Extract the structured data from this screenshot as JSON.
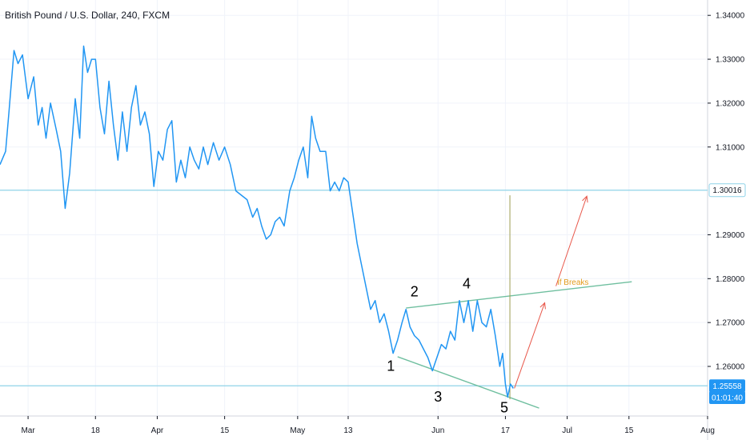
{
  "chart_data": {
    "type": "line",
    "title": "British Pound / U.S. Dollar, 240, FXCM",
    "ylim": [
      1.2487,
      1.3435
    ],
    "xlim": [
      0,
      126
    ],
    "x_ticks": [
      {
        "label": "Mar",
        "x": 5
      },
      {
        "label": "18",
        "x": 17
      },
      {
        "label": "Apr",
        "x": 28
      },
      {
        "label": "15",
        "x": 40
      },
      {
        "label": "May",
        "x": 53
      },
      {
        "label": "13",
        "x": 62
      },
      {
        "label": "Jun",
        "x": 78
      },
      {
        "label": "17",
        "x": 90
      },
      {
        "label": "Jul",
        "x": 101
      },
      {
        "label": "15",
        "x": 112
      },
      {
        "label": "Aug",
        "x": 126
      }
    ],
    "y_ticks": [
      {
        "label": "1.34000",
        "value": 1.34
      },
      {
        "label": "1.33000",
        "value": 1.33
      },
      {
        "label": "1.32000",
        "value": 1.32
      },
      {
        "label": "1.31000",
        "value": 1.31
      },
      {
        "label": "1.29000",
        "value": 1.29
      },
      {
        "label": "1.28000",
        "value": 1.28
      },
      {
        "label": "1.27000",
        "value": 1.27
      },
      {
        "label": "1.26000",
        "value": 1.26
      }
    ],
    "series": [
      {
        "color": "#2196f3",
        "points": [
          [
            0,
            1.306
          ],
          [
            1,
            1.309
          ],
          [
            1.6,
            1.318
          ],
          [
            2.5,
            1.332
          ],
          [
            3.2,
            1.329
          ],
          [
            4,
            1.331
          ],
          [
            5,
            1.321
          ],
          [
            6,
            1.326
          ],
          [
            6.8,
            1.315
          ],
          [
            7.5,
            1.319
          ],
          [
            8.2,
            1.312
          ],
          [
            9,
            1.32
          ],
          [
            10,
            1.314
          ],
          [
            10.8,
            1.309
          ],
          [
            11.6,
            1.296
          ],
          [
            12.4,
            1.304
          ],
          [
            13.4,
            1.321
          ],
          [
            14.2,
            1.312
          ],
          [
            14.9,
            1.333
          ],
          [
            15.6,
            1.327
          ],
          [
            16.3,
            1.33
          ],
          [
            17,
            1.33
          ],
          [
            17.8,
            1.319
          ],
          [
            18.6,
            1.313
          ],
          [
            19.4,
            1.325
          ],
          [
            20.2,
            1.315
          ],
          [
            21,
            1.307
          ],
          [
            21.8,
            1.318
          ],
          [
            22.6,
            1.309
          ],
          [
            23.4,
            1.319
          ],
          [
            24.2,
            1.324
          ],
          [
            25,
            1.315
          ],
          [
            25.8,
            1.318
          ],
          [
            26.6,
            1.313
          ],
          [
            27.4,
            1.301
          ],
          [
            28.2,
            1.309
          ],
          [
            29,
            1.307
          ],
          [
            29.8,
            1.314
          ],
          [
            30.6,
            1.316
          ],
          [
            31.4,
            1.302
          ],
          [
            32.2,
            1.307
          ],
          [
            33,
            1.303
          ],
          [
            33.8,
            1.31
          ],
          [
            34.6,
            1.307
          ],
          [
            35.4,
            1.305
          ],
          [
            36.2,
            1.31
          ],
          [
            37,
            1.306
          ],
          [
            38,
            1.311
          ],
          [
            39,
            1.307
          ],
          [
            40,
            1.31
          ],
          [
            41,
            1.306
          ],
          [
            42,
            1.3
          ],
          [
            43,
            1.299
          ],
          [
            44,
            1.298
          ],
          [
            45,
            1.294
          ],
          [
            45.8,
            1.296
          ],
          [
            46.6,
            1.292
          ],
          [
            47.4,
            1.289
          ],
          [
            48.2,
            1.29
          ],
          [
            49,
            1.293
          ],
          [
            49.8,
            1.294
          ],
          [
            50.6,
            1.292
          ],
          [
            51.6,
            1.3
          ],
          [
            52.4,
            1.303
          ],
          [
            53.2,
            1.307
          ],
          [
            54,
            1.31
          ],
          [
            54.8,
            1.303
          ],
          [
            55.5,
            1.317
          ],
          [
            56.2,
            1.312
          ],
          [
            57,
            1.309
          ],
          [
            58,
            1.309
          ],
          [
            58.8,
            1.3
          ],
          [
            59.6,
            1.302
          ],
          [
            60.4,
            1.3
          ],
          [
            61.2,
            1.303
          ],
          [
            62,
            1.302
          ],
          [
            62.8,
            1.295
          ],
          [
            63.6,
            1.288
          ],
          [
            64.4,
            1.283
          ],
          [
            65.2,
            1.278
          ],
          [
            66,
            1.273
          ],
          [
            66.8,
            1.275
          ],
          [
            67.6,
            1.27
          ],
          [
            68.4,
            1.272
          ],
          [
            69.2,
            1.268
          ],
          [
            70,
            1.263
          ],
          [
            70.8,
            1.266
          ],
          [
            71.6,
            1.27
          ],
          [
            72.3,
            1.273
          ],
          [
            73,
            1.269
          ],
          [
            73.8,
            1.267
          ],
          [
            74.6,
            1.266
          ],
          [
            75.4,
            1.264
          ],
          [
            76.2,
            1.262
          ],
          [
            77,
            1.259
          ],
          [
            77.8,
            1.262
          ],
          [
            78.6,
            1.265
          ],
          [
            79.4,
            1.264
          ],
          [
            80.2,
            1.268
          ],
          [
            81,
            1.266
          ],
          [
            81.8,
            1.275
          ],
          [
            82.6,
            1.27
          ],
          [
            83.4,
            1.275
          ],
          [
            84.2,
            1.268
          ],
          [
            85,
            1.275
          ],
          [
            85.8,
            1.27
          ],
          [
            86.6,
            1.269
          ],
          [
            87.4,
            1.273
          ],
          [
            88.2,
            1.267
          ],
          [
            89,
            1.26
          ],
          [
            89.5,
            1.263
          ],
          [
            90,
            1.256
          ],
          [
            90.4,
            1.253
          ],
          [
            90.9,
            1.256
          ],
          [
            91.4,
            1.255
          ]
        ]
      }
    ],
    "price_badges": [
      {
        "label": "1.30016",
        "value": 1.30016,
        "style": "outline"
      },
      {
        "label": "1.25558",
        "value": 1.25558,
        "style": "filled"
      },
      {
        "label": "01:01:40",
        "value": 1.2529,
        "style": "filled"
      }
    ],
    "hlines": [
      1.30016,
      1.25558
    ],
    "trendlines": [
      {
        "from": [
          72.3,
          1.2733
        ],
        "to": [
          112.5,
          1.2793
        ],
        "color": "#6fbf9f"
      },
      {
        "from": [
          70.8,
          1.2622
        ],
        "to": [
          96,
          1.2505
        ],
        "color": "#6fbf9f"
      }
    ],
    "vline": {
      "x": 90.8,
      "from": 1.2525,
      "to": 1.299,
      "color": "#9e9e53"
    },
    "arrows": [
      {
        "from": [
          91.6,
          1.255
        ],
        "to": [
          97,
          1.2745
        ],
        "color": "#e8574a"
      },
      {
        "from": [
          99,
          1.2783
        ],
        "to": [
          104.5,
          1.2988
        ],
        "color": "#e8574a"
      }
    ],
    "wave_labels": [
      {
        "label": "1",
        "x": 69.6,
        "y": 1.259
      },
      {
        "label": "2",
        "x": 73.8,
        "y": 1.276
      },
      {
        "label": "3",
        "x": 78.0,
        "y": 1.252
      },
      {
        "label": "4",
        "x": 83.1,
        "y": 1.2778
      },
      {
        "label": "5",
        "x": 89.8,
        "y": 1.2495
      }
    ],
    "annotations": [
      {
        "text": "If Breaks",
        "x": 99.2,
        "y": 1.2786
      }
    ]
  }
}
